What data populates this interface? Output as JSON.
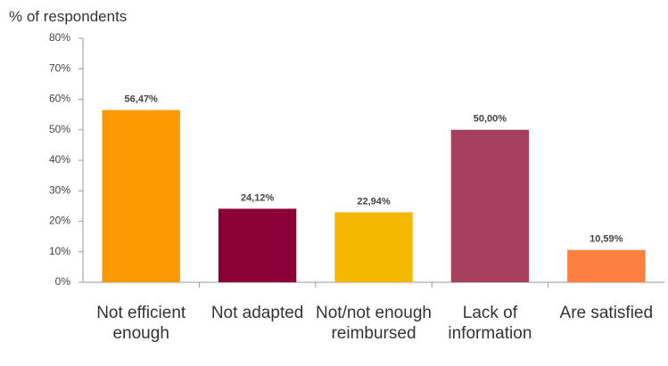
{
  "chart_data": {
    "type": "bar",
    "y_axis_label": "% of respondents",
    "categories": [
      "Not efficient enough",
      "Not adapted",
      "Not/not enough reimbursed",
      "Lack of information",
      "Are satisfied"
    ],
    "values": [
      56.47,
      24.12,
      22.94,
      50.0,
      10.59
    ],
    "value_labels": [
      "56,47%",
      "24,12%",
      "22,94%",
      "50,00%",
      "10,59%"
    ],
    "colors": [
      "#fa9a00",
      "#8c0038",
      "#f5b700",
      "#a6405f",
      "#ff7f40"
    ],
    "ylim": [
      0,
      80
    ],
    "yticks": [
      {
        "value": 0,
        "label": "0%"
      },
      {
        "value": 10,
        "label": "10%"
      },
      {
        "value": 20,
        "label": "20%"
      },
      {
        "value": 30,
        "label": "30%"
      },
      {
        "value": 40,
        "label": "40%"
      },
      {
        "value": 50,
        "label": "50%"
      },
      {
        "value": 60,
        "label": "60%"
      },
      {
        "value": 70,
        "label": "70%"
      },
      {
        "value": 80,
        "label": "80%"
      }
    ],
    "grid": false
  }
}
